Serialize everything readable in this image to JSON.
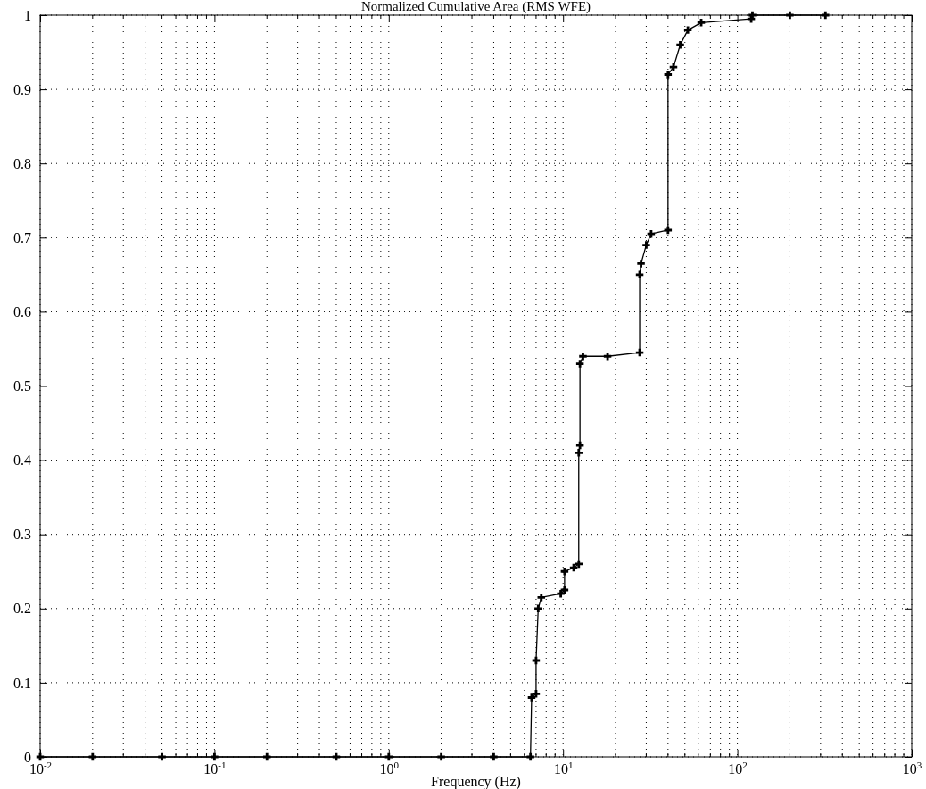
{
  "chart_data": {
    "type": "line",
    "title": "Normalized Cumulative Area (RMS WFE)",
    "xlabel": "Frequency (Hz)",
    "log": "x",
    "grid": true,
    "marker": "cross",
    "line_style": "solid",
    "xlim": [
      0.01,
      1000
    ],
    "xticks": [
      {
        "value": 0.01,
        "label": "10$^{-2}$"
      },
      {
        "value": 0.1,
        "label": "10$^{-1}$"
      },
      {
        "value": 1,
        "label": "10$^{0}$"
      },
      {
        "value": 10,
        "label": "10$^{1}$"
      },
      {
        "value": 100,
        "label": "10$^{2}$"
      },
      {
        "value": 1000,
        "label": "10$^{3}$"
      }
    ],
    "ylim": [
      0,
      1
    ],
    "yticks": [
      0,
      0.1,
      0.2,
      0.3,
      0.4,
      0.5,
      0.6,
      0.7,
      0.8,
      0.9,
      1
    ],
    "series": [
      {
        "color": "#000000",
        "x": [
          0.01,
          0.02,
          0.05,
          0.1,
          0.2,
          0.5,
          1,
          2,
          4,
          6.5,
          6.6,
          7.0,
          7.0,
          7.2,
          7.5,
          9.7,
          10.2,
          10.2,
          11.5,
          12.3,
          12.3,
          12.5,
          12.5,
          13,
          18,
          27.5,
          27.5,
          28,
          30,
          32,
          40,
          40,
          43,
          47,
          52,
          62,
          120,
          122,
          200,
          320
        ],
        "values": [
          0,
          0,
          0,
          0,
          0,
          0,
          0,
          0,
          0,
          0,
          0.08,
          0.085,
          0.13,
          0.2,
          0.215,
          0.22,
          0.225,
          0.25,
          0.255,
          0.26,
          0.41,
          0.42,
          0.53,
          0.54,
          0.54,
          0.545,
          0.65,
          0.665,
          0.69,
          0.705,
          0.71,
          0.92,
          0.93,
          0.96,
          0.98,
          0.99,
          0.995,
          1,
          1,
          1
        ]
      }
    ]
  }
}
